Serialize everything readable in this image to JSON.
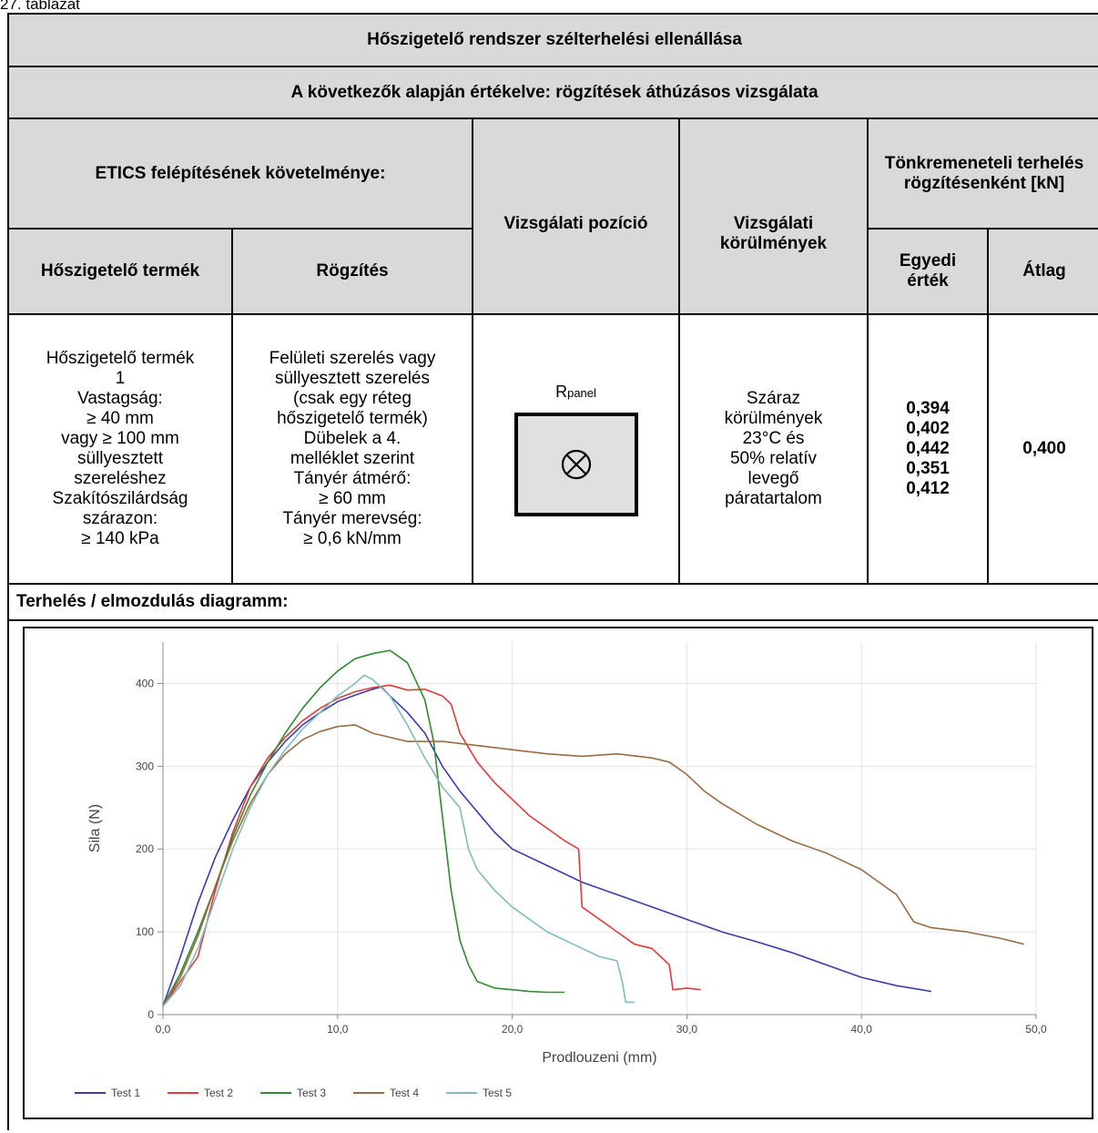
{
  "caption": "27. táblázat",
  "table": {
    "title": "Hőszigetelő rendszer szélterhelési ellenállása",
    "subtitle": "A következők alapján értékelve: rögzítések áthúzásos vizsgálata",
    "etics_header": "ETICS felépítésének követelménye:",
    "position_header": "Vizsgálati pozíció",
    "conditions_header": "Vizsgálati körülmények",
    "failure_header": "Tönkremeneteli terhelés rögzítésenként [kN]",
    "insulation_header": "Hőszigetelő termék",
    "fixing_header": "Rögzítés",
    "single_header": "Egyedi érték",
    "average_header": "Átlag",
    "insulation_lines": [
      "Hőszigetelő termék",
      "1",
      "Vastagság:",
      "≥ 40 mm",
      "vagy ≥ 100 mm",
      "süllyesztett",
      "szereléshez",
      "Szakítószilárdság",
      "szárazon:",
      "≥ 140 kPa"
    ],
    "fixing_lines": [
      "Felületi szerelés vagy",
      "süllyesztett szerelés",
      "(csak egy réteg",
      "hőszigetelő termék)",
      "Dübelek a 4.",
      "melléklet szerint",
      "Tányér átmérő:",
      "≥ 60 mm",
      "Tányér merevség:",
      "≥ 0,6 kN/mm"
    ],
    "position_label_main": "R",
    "position_label_sub": "panel",
    "conditions_lines": [
      "Száraz",
      "körülmények",
      "23°C és",
      "50% relatív",
      "levegő",
      "páratartalom"
    ],
    "single_values": [
      "0,394",
      "0,402",
      "0,442",
      "0,351",
      "0,412"
    ],
    "average_value": "0,400",
    "diagram_header": "Terhelés / elmozdulás diagramm:"
  },
  "chart_data": {
    "type": "line",
    "xlabel": "Prodlouzeni (mm)",
    "ylabel": "Sila (N)",
    "xlim": [
      0,
      50
    ],
    "ylim": [
      0,
      450
    ],
    "x_ticks": [
      "0,0",
      "10,0",
      "20,0",
      "30,0",
      "40,0",
      "50,0"
    ],
    "x_tick_values": [
      0,
      10,
      20,
      30,
      40,
      50
    ],
    "y_ticks": [
      "0",
      "100",
      "200",
      "300",
      "400"
    ],
    "y_tick_values": [
      0,
      100,
      200,
      300,
      400
    ],
    "grid": true,
    "legend_position": "bottom-left",
    "series": [
      {
        "name": "Test 1",
        "color": "#3b3bb0",
        "x": [
          0,
          1,
          2,
          3,
          4,
          5,
          6,
          7,
          8,
          9,
          10,
          11,
          12,
          12.5,
          13,
          14,
          15,
          16,
          17,
          18,
          19,
          20,
          22,
          24,
          26,
          28,
          30,
          32,
          34,
          36,
          38,
          40,
          42,
          44
        ],
        "y": [
          10,
          70,
          135,
          190,
          235,
          275,
          305,
          330,
          350,
          365,
          378,
          386,
          393,
          396,
          385,
          365,
          340,
          300,
          270,
          245,
          220,
          200,
          180,
          160,
          145,
          130,
          115,
          100,
          88,
          75,
          60,
          45,
          35,
          28
        ]
      },
      {
        "name": "Test 2",
        "color": "#e23b3b",
        "x": [
          0,
          1,
          2,
          3,
          4,
          5,
          6,
          7,
          8,
          9,
          10,
          11,
          12,
          13,
          14,
          15,
          16,
          16.5,
          17,
          18,
          19,
          20,
          21,
          22,
          23,
          23.8,
          24,
          25,
          26,
          27,
          28,
          29,
          29.2,
          30,
          30.8
        ],
        "y": [
          10,
          40,
          70,
          150,
          220,
          275,
          310,
          335,
          355,
          370,
          382,
          390,
          395,
          398,
          392,
          393,
          385,
          375,
          340,
          305,
          280,
          260,
          240,
          225,
          210,
          200,
          130,
          115,
          100,
          85,
          80,
          60,
          30,
          32,
          30
        ]
      },
      {
        "name": "Test 3",
        "color": "#2e8b2e",
        "x": [
          0,
          1,
          2,
          3,
          4,
          5,
          6,
          7,
          8,
          9,
          10,
          11,
          12,
          12.5,
          13,
          14,
          15,
          15.5,
          16,
          16.5,
          17,
          17.5,
          18,
          19,
          20,
          21,
          22,
          23
        ],
        "y": [
          10,
          50,
          100,
          155,
          215,
          265,
          305,
          340,
          370,
          395,
          415,
          430,
          436,
          438,
          440,
          425,
          380,
          330,
          240,
          150,
          90,
          60,
          40,
          32,
          30,
          28,
          27,
          27
        ]
      },
      {
        "name": "Test 4",
        "color": "#9b6b42",
        "x": [
          0,
          1,
          2,
          3,
          4,
          5,
          6,
          7,
          8,
          9,
          10,
          11,
          12,
          14,
          16,
          18,
          20,
          22,
          24,
          26,
          28,
          29,
          30,
          31,
          32,
          34,
          36,
          38,
          40,
          41,
          42,
          43,
          44,
          46,
          48,
          49.3
        ],
        "y": [
          10,
          45,
          95,
          155,
          210,
          255,
          290,
          315,
          332,
          342,
          348,
          350,
          340,
          330,
          330,
          325,
          320,
          315,
          312,
          315,
          310,
          305,
          290,
          270,
          255,
          230,
          210,
          195,
          175,
          160,
          145,
          112,
          105,
          100,
          92,
          85
        ]
      },
      {
        "name": "Test 5",
        "color": "#7fbcbc",
        "x": [
          0,
          1,
          2,
          3,
          4,
          5,
          6,
          7,
          8,
          9,
          10,
          11,
          11.5,
          12,
          13,
          14,
          15,
          16,
          17,
          17.5,
          18,
          19,
          20,
          21,
          22,
          23,
          24,
          25,
          26,
          26.3,
          26.5,
          27
        ],
        "y": [
          10,
          35,
          80,
          140,
          200,
          250,
          290,
          320,
          345,
          365,
          385,
          400,
          410,
          405,
          385,
          350,
          310,
          275,
          250,
          200,
          175,
          150,
          130,
          115,
          100,
          90,
          80,
          70,
          65,
          40,
          15,
          15
        ]
      }
    ]
  }
}
